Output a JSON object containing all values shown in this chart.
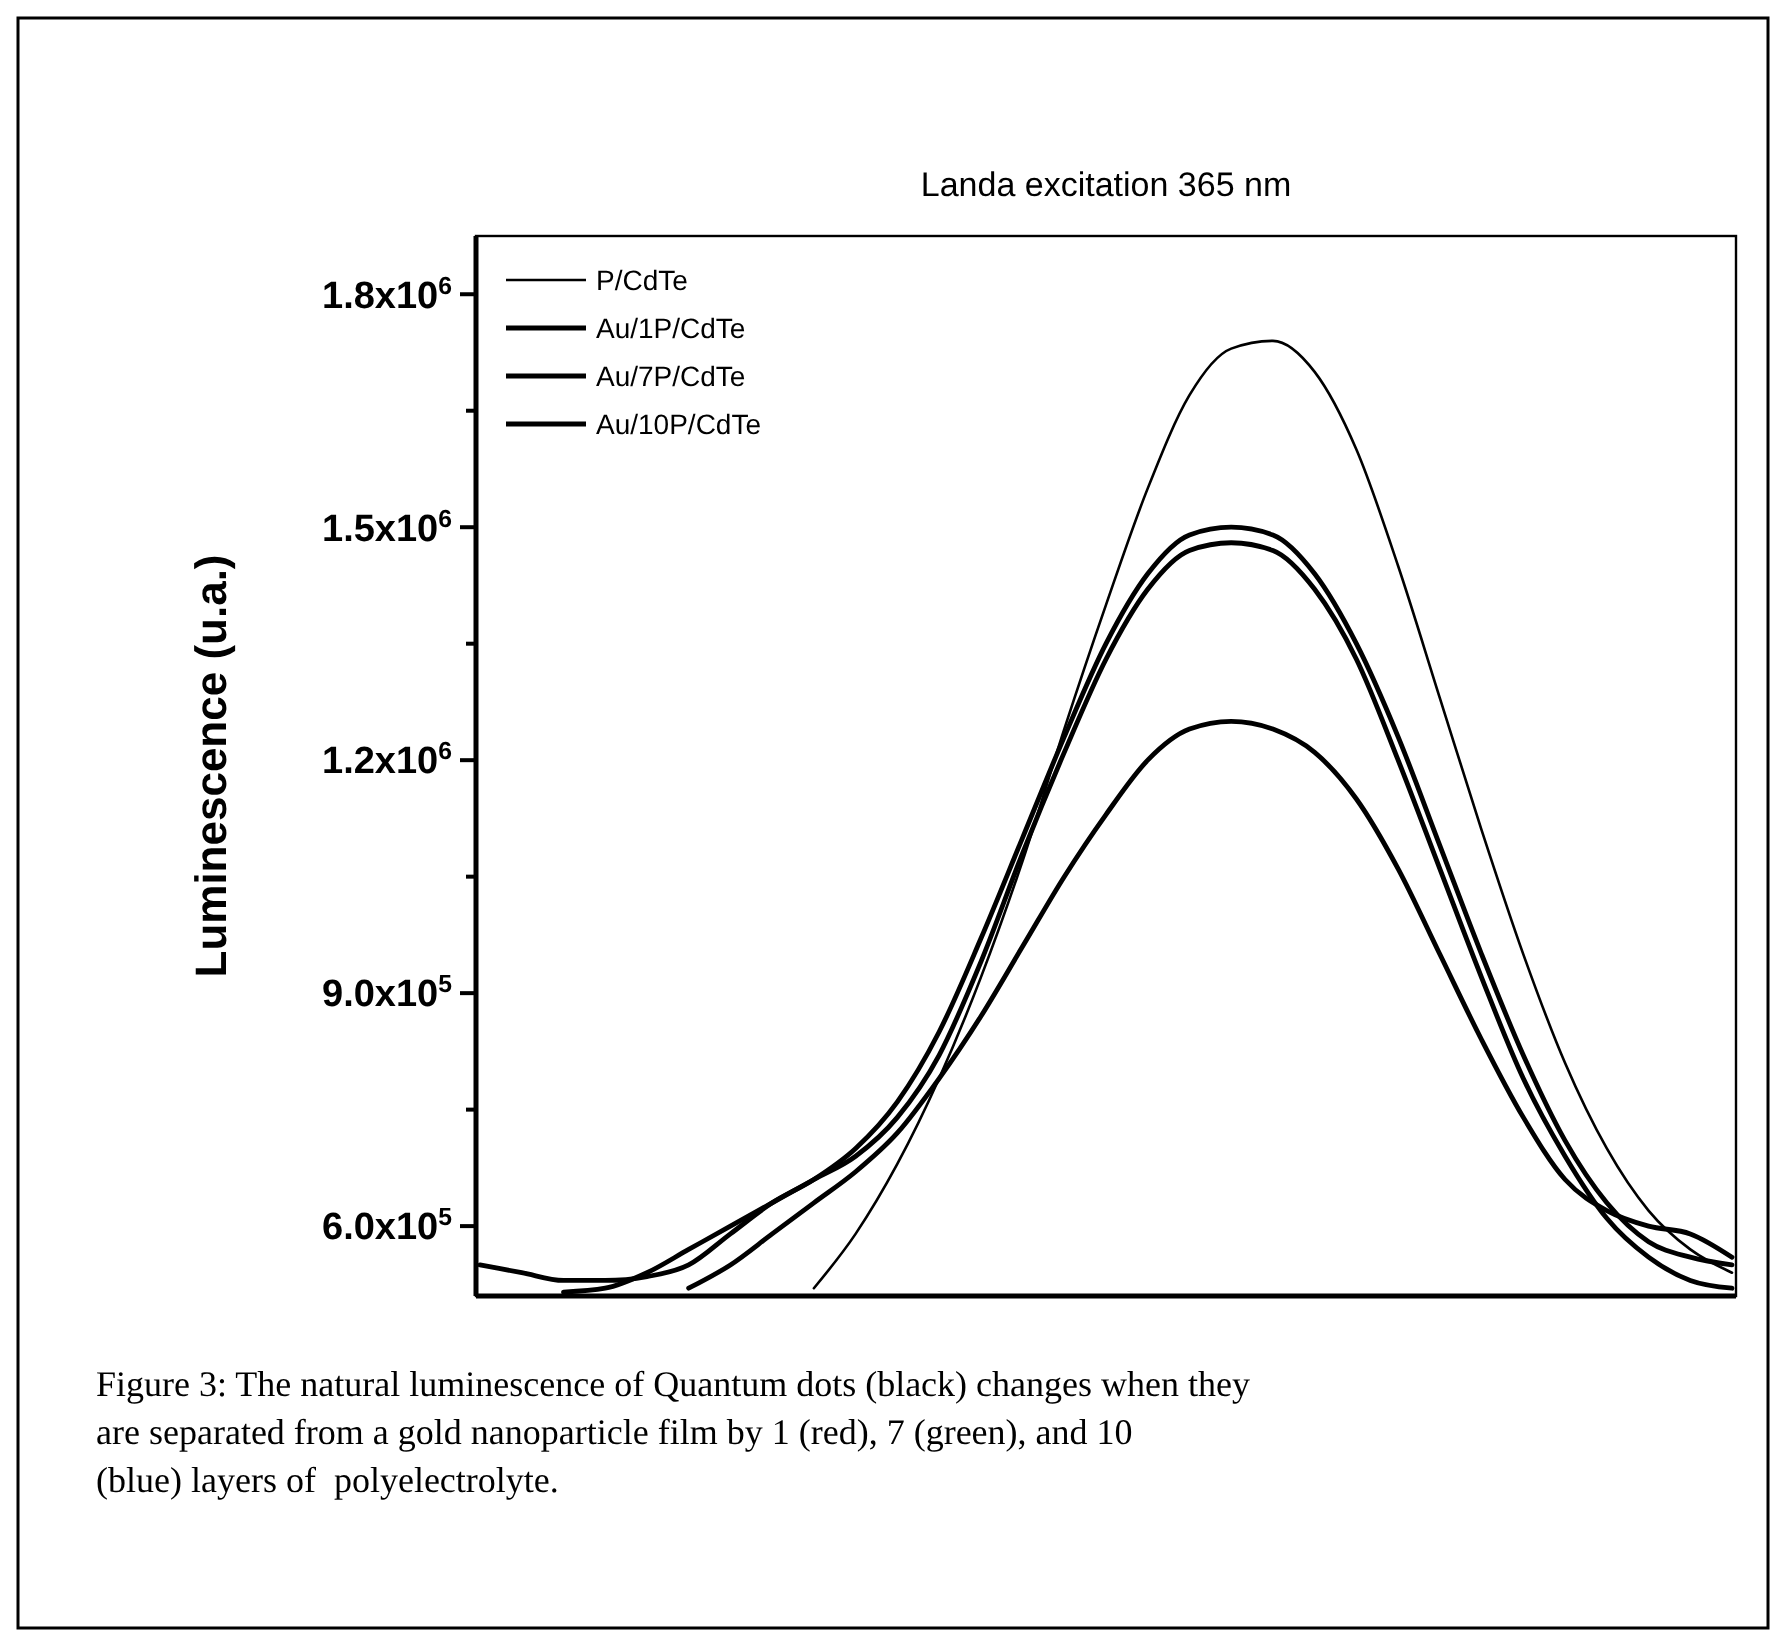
{
  "chart_data": {
    "type": "line",
    "title": "Landa excitation 365 nm",
    "ylabel": "Luminescence (u.a.)",
    "categories": [
      null,
      null,
      null,
      null,
      null,
      null,
      null,
      null,
      null,
      null,
      null,
      null,
      null,
      null,
      null,
      null,
      null,
      null,
      null,
      null,
      null,
      null,
      null,
      null,
      null,
      null,
      null,
      null,
      null,
      null,
      null
    ],
    "series": [
      {
        "name": "P/CdTe",
        "color": "#000000",
        "values": [
          null,
          null,
          null,
          null,
          null,
          null,
          null,
          null,
          520000,
          590000,
          680000,
          790000,
          920000,
          1070000,
          1240000,
          1400000,
          1550000,
          1670000,
          1730000,
          1740000,
          1700000,
          1600000,
          1450000,
          1280000,
          1110000,
          950000,
          810000,
          700000,
          620000,
          570000,
          540000
        ]
      },
      {
        "name": "Au/1P/CdTe",
        "color": "#000000",
        "values": [
          550000,
          540000,
          530000,
          530000,
          535000,
          550000,
          590000,
          630000,
          660000,
          700000,
          760000,
          850000,
          970000,
          1100000,
          1230000,
          1350000,
          1440000,
          1490000,
          1500000,
          1490000,
          1440000,
          1350000,
          1230000,
          1090000,
          950000,
          820000,
          710000,
          630000,
          580000,
          560000,
          550000
        ]
      },
      {
        "name": "Au/7P/CdTe",
        "color": "#000000",
        "values": [
          null,
          null,
          515000,
          520000,
          540000,
          570000,
          600000,
          630000,
          660000,
          690000,
          740000,
          820000,
          940000,
          1080000,
          1210000,
          1330000,
          1420000,
          1470000,
          1480000,
          1470000,
          1420000,
          1330000,
          1200000,
          1060000,
          920000,
          790000,
          690000,
          610000,
          560000,
          530000,
          520000
        ]
      },
      {
        "name": "Au/10P/CdTe",
        "color": "#000000",
        "values": [
          null,
          null,
          null,
          null,
          null,
          520000,
          550000,
          590000,
          630000,
          670000,
          720000,
          790000,
          870000,
          960000,
          1050000,
          1130000,
          1200000,
          1240000,
          1250000,
          1240000,
          1210000,
          1150000,
          1060000,
          950000,
          840000,
          740000,
          660000,
          620000,
          600000,
          590000,
          560000
        ]
      }
    ],
    "ylim": [
      510000,
      1875000
    ],
    "yticks": [
      {
        "value": 600000,
        "label": "6.0x10$^{5}$"
      },
      {
        "value": 750000,
        "label": null
      },
      {
        "value": 900000,
        "label": "9.0x10$^{5}$"
      },
      {
        "value": 1050000,
        "label": null
      },
      {
        "value": 1200000,
        "label": "1.2x10$^{6}$"
      },
      {
        "value": 1350000,
        "label": null
      },
      {
        "value": 1500000,
        "label": "1.5x10$^{6}$"
      },
      {
        "value": 1650000,
        "label": null
      },
      {
        "value": 1800000,
        "label": "1.8x10$^{6}$"
      }
    ],
    "tick_labels": "y",
    "grid": false,
    "legend": "top left",
    "marker": "none",
    "line_style": "solid",
    "annotations": [
      "Figure 3: The natural luminescence of Quantum dots (black) changes when they are separated from a gold nanoparticle film by 1 (red), 7 (green), and 10 (blue) layers of  polyelectrolyte."
    ]
  }
}
